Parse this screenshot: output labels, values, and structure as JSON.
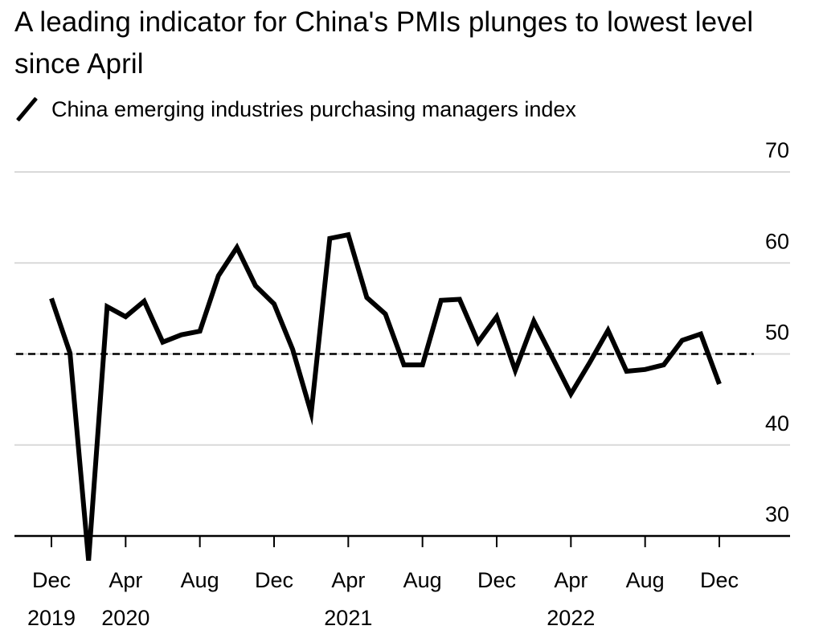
{
  "title": "A leading indicator for China's PMIs plunges to lowest level since April",
  "legend": {
    "label": "China emerging industries purchasing managers index",
    "icon": "diagonal-line-swatch"
  },
  "colors": {
    "line": "#000000",
    "grid": "#d9d9d9",
    "axis": "#000000",
    "background": "#ffffff"
  },
  "chart_data": {
    "type": "line",
    "title": "A leading indicator for China's PMIs plunges to lowest level since April",
    "ylim": [
      27,
      70
    ],
    "yticks": [
      70,
      60,
      50,
      40,
      30
    ],
    "grid": true,
    "reference_line": {
      "y": 50,
      "style": "dashed"
    },
    "x_ticks": [
      {
        "month": "Dec",
        "year": "2019",
        "index": 0
      },
      {
        "month": "Apr",
        "year": "2020",
        "index": 4
      },
      {
        "month": "Aug",
        "year": "",
        "index": 8
      },
      {
        "month": "Dec",
        "year": "",
        "index": 12
      },
      {
        "month": "Apr",
        "year": "2021",
        "index": 16
      },
      {
        "month": "Aug",
        "year": "",
        "index": 20
      },
      {
        "month": "Dec",
        "year": "",
        "index": 24
      },
      {
        "month": "Apr",
        "year": "2022",
        "index": 28
      },
      {
        "month": "Aug",
        "year": "",
        "index": 32
      },
      {
        "month": "Dec",
        "year": "",
        "index": 36
      }
    ],
    "series": [
      {
        "name": "China emerging industries purchasing managers index",
        "x": [
          "2019-12",
          "2020-01",
          "2020-02",
          "2020-03",
          "2020-04",
          "2020-05",
          "2020-06",
          "2020-07",
          "2020-08",
          "2020-09",
          "2020-10",
          "2020-11",
          "2020-12",
          "2021-01",
          "2021-02",
          "2021-03",
          "2021-04",
          "2021-05",
          "2021-06",
          "2021-07",
          "2021-08",
          "2021-09",
          "2021-10",
          "2021-11",
          "2021-12",
          "2022-01",
          "2022-02",
          "2022-03",
          "2022-04",
          "2022-05",
          "2022-06",
          "2022-07",
          "2022-08",
          "2022-09",
          "2022-10",
          "2022-11",
          "2022-12"
        ],
        "values": [
          56.1,
          50.1,
          27.3,
          55.2,
          54.1,
          55.8,
          51.3,
          52.1,
          52.5,
          58.6,
          61.7,
          57.5,
          55.5,
          50.5,
          43.5,
          62.7,
          63.1,
          56.2,
          54.4,
          48.8,
          48.8,
          55.9,
          56.0,
          51.3,
          54.1,
          48.2,
          53.6,
          49.6,
          45.6,
          49.0,
          52.6,
          48.1,
          48.3,
          48.8,
          51.5,
          52.2,
          46.7
        ]
      }
    ]
  }
}
